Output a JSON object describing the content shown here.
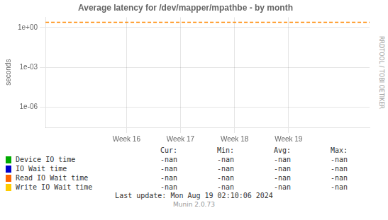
{
  "chart_data": {
    "type": "line",
    "title": "Average latency for /dev/mapper/mpathbe - by month",
    "ylabel": "seconds",
    "log": "y",
    "grid": true,
    "xlim": [
      14.5,
      20.5
    ],
    "xticks": [
      {
        "value": 16,
        "label": "Week 16"
      },
      {
        "value": 17,
        "label": "Week 17"
      },
      {
        "value": 18,
        "label": "Week 18"
      },
      {
        "value": 19,
        "label": "Week 19"
      }
    ],
    "ylim": [
      3e-08,
      6.0
    ],
    "yticks": [
      {
        "value": 1e-06,
        "label": "1e-06"
      },
      {
        "value": 0.001,
        "label": "1e-03"
      },
      {
        "value": 1,
        "label": "1e+00"
      }
    ],
    "reference_line": {
      "y": 2.5,
      "color": "#ff8800",
      "line_style": "dashed"
    },
    "table_headers": [
      "Cur:",
      "Min:",
      "Avg:",
      "Max:"
    ],
    "series": [
      {
        "name": "Device IO time",
        "color": "#00aa00",
        "values": [],
        "table_values": [
          "-nan",
          "-nan",
          "-nan",
          "-nan"
        ]
      },
      {
        "name": "IO Wait time",
        "color": "#0000cc",
        "values": [],
        "table_values": [
          "-nan",
          "-nan",
          "-nan",
          "-nan"
        ]
      },
      {
        "name": "Read IO Wait time",
        "color": "#ff6600",
        "values": [],
        "table_values": [
          "-nan",
          "-nan",
          "-nan",
          "-nan"
        ]
      },
      {
        "name": "Write IO Wait time",
        "color": "#ffcc00",
        "values": [],
        "table_values": [
          "-nan",
          "-nan",
          "-nan",
          "-nan"
        ]
      }
    ],
    "last_update": "Last update: Mon Aug 19 02:10:06 2024",
    "watermark": "Munin 2.0.73",
    "side_text": "RRDTOOL / TOBI OETIKER"
  }
}
